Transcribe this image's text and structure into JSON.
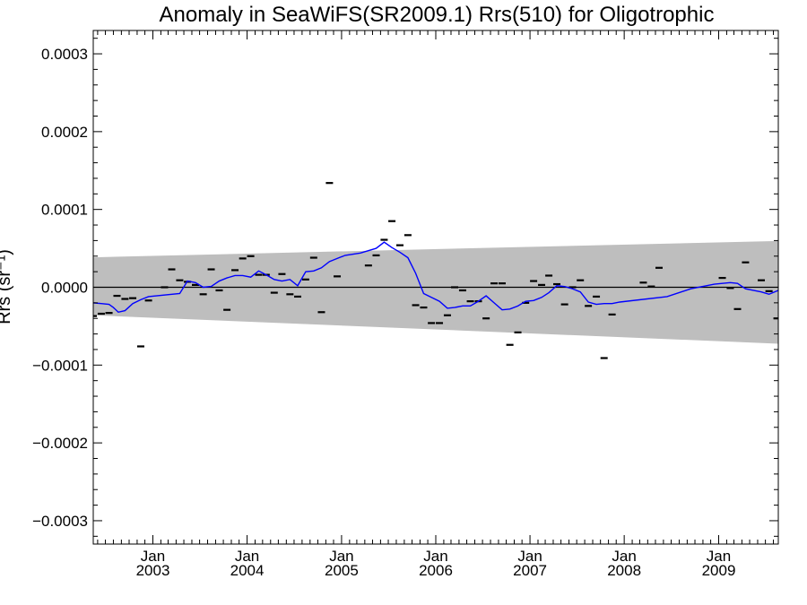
{
  "chart_data": {
    "type": "scatter",
    "title": "Anomaly in SeaWiFS(SR2009.1) Rrs(510) for Oligotrophic",
    "ylabel": "Rrs (sr⁻¹)",
    "xlabel": "",
    "xlim": [
      "2002-05-15",
      "2009-08-20"
    ],
    "ylim": [
      -0.00033,
      0.00033
    ],
    "x_ticks": [
      {
        "date": "2003-01-01",
        "month": "Jan",
        "year": "2003"
      },
      {
        "date": "2004-01-01",
        "month": "Jan",
        "year": "2004"
      },
      {
        "date": "2005-01-01",
        "month": "Jan",
        "year": "2005"
      },
      {
        "date": "2006-01-01",
        "month": "Jan",
        "year": "2006"
      },
      {
        "date": "2007-01-01",
        "month": "Jan",
        "year": "2007"
      },
      {
        "date": "2008-01-01",
        "month": "Jan",
        "year": "2008"
      },
      {
        "date": "2009-01-01",
        "month": "Jan",
        "year": "2009"
      }
    ],
    "y_ticks": [
      {
        "value": 0.0003,
        "label": "0.0003"
      },
      {
        "value": 0.0002,
        "label": "0.0002"
      },
      {
        "value": 0.0001,
        "label": "0.0001"
      },
      {
        "value": 0.0,
        "label": "0.0000"
      },
      {
        "value": -0.0001,
        "label": "−0.0001"
      },
      {
        "value": -0.0002,
        "label": "−0.0002"
      },
      {
        "value": -0.0003,
        "label": "−0.0003"
      }
    ],
    "zero_line": true,
    "band": {
      "color": "#bebebe",
      "upper": [
        [
          "2002-05-15",
          3.85e-05
        ],
        [
          "2009-08-20",
          5.95e-05
        ]
      ],
      "lower": [
        [
          "2002-05-15",
          -3.6e-05
        ],
        [
          "2009-08-20",
          -7.25e-05
        ]
      ]
    },
    "series": [
      {
        "marker": "dash",
        "color": "#000000",
        "points": [
          [
            "2002-05-15",
            -3.7e-05
          ],
          [
            "2002-06-15",
            -3.4e-05
          ],
          [
            "2002-07-15",
            -3.3e-05
          ],
          [
            "2002-08-15",
            -1.1e-05
          ],
          [
            "2002-09-15",
            -1.5e-05
          ],
          [
            "2002-10-15",
            -1.4e-05
          ],
          [
            "2002-11-15",
            -7.6e-05
          ],
          [
            "2002-12-15",
            -1.7e-05
          ],
          [
            "2003-02-15",
            0.0
          ],
          [
            "2003-03-15",
            2.3e-05
          ],
          [
            "2003-04-15",
            9e-06
          ],
          [
            "2003-05-15",
            7e-06
          ],
          [
            "2003-06-15",
            3e-06
          ],
          [
            "2003-07-15",
            -9e-06
          ],
          [
            "2003-08-15",
            2.3e-05
          ],
          [
            "2003-09-15",
            -4e-06
          ],
          [
            "2003-10-15",
            -2.9e-05
          ],
          [
            "2003-11-15",
            2.2e-05
          ],
          [
            "2003-12-15",
            3.7e-05
          ],
          [
            "2004-01-15",
            4e-05
          ],
          [
            "2004-02-15",
            1.6e-05
          ],
          [
            "2004-03-15",
            1.6e-05
          ],
          [
            "2004-04-15",
            -7e-06
          ],
          [
            "2004-05-15",
            1.7e-05
          ],
          [
            "2004-06-15",
            -9e-06
          ],
          [
            "2004-07-15",
            -1.2e-05
          ],
          [
            "2004-08-15",
            1e-05
          ],
          [
            "2004-09-15",
            3.8e-05
          ],
          [
            "2004-10-15",
            -3.2e-05
          ],
          [
            "2004-11-15",
            0.000134
          ],
          [
            "2004-12-15",
            1.4e-05
          ],
          [
            "2005-04-15",
            2.8e-05
          ],
          [
            "2005-05-15",
            4.1e-05
          ],
          [
            "2005-06-15",
            6.1e-05
          ],
          [
            "2005-07-15",
            8.5e-05
          ],
          [
            "2005-08-15",
            5.4e-05
          ],
          [
            "2005-09-15",
            6.7e-05
          ],
          [
            "2005-10-15",
            -2.3e-05
          ],
          [
            "2005-11-15",
            -2.6e-05
          ],
          [
            "2005-12-15",
            -4.6e-05
          ],
          [
            "2006-01-15",
            -4.6e-05
          ],
          [
            "2006-02-15",
            -3.6e-05
          ],
          [
            "2006-03-15",
            0.0
          ],
          [
            "2006-04-15",
            -4e-06
          ],
          [
            "2006-05-15",
            -1.8e-05
          ],
          [
            "2006-06-15",
            -1.8e-05
          ],
          [
            "2006-07-15",
            -4e-05
          ],
          [
            "2006-08-15",
            5e-06
          ],
          [
            "2006-09-15",
            5e-06
          ],
          [
            "2006-10-15",
            -7.4e-05
          ],
          [
            "2006-11-15",
            -5.8e-05
          ],
          [
            "2006-12-15",
            -2e-05
          ],
          [
            "2007-01-15",
            8e-06
          ],
          [
            "2007-02-15",
            3e-06
          ],
          [
            "2007-03-15",
            1.5e-05
          ],
          [
            "2007-04-15",
            4e-06
          ],
          [
            "2007-05-15",
            -2.2e-05
          ],
          [
            "2007-06-15",
            0.0
          ],
          [
            "2007-07-15",
            9e-06
          ],
          [
            "2007-08-15",
            -2.4e-05
          ],
          [
            "2007-09-15",
            -1.2e-05
          ],
          [
            "2007-10-15",
            -9.1e-05
          ],
          [
            "2007-11-15",
            -3.5e-05
          ],
          [
            "2008-03-15",
            6e-06
          ],
          [
            "2008-04-15",
            1e-06
          ],
          [
            "2008-05-15",
            2.5e-05
          ],
          [
            "2009-01-15",
            1.2e-05
          ],
          [
            "2009-02-15",
            -1e-06
          ],
          [
            "2009-03-15",
            -2.8e-05
          ],
          [
            "2009-04-15",
            3.2e-05
          ],
          [
            "2009-06-15",
            9e-06
          ],
          [
            "2009-07-15",
            -5e-06
          ],
          [
            "2009-08-15",
            -4e-05
          ]
        ]
      },
      {
        "marker": "line",
        "color": "#0000ff",
        "points": [
          [
            "2002-05-15",
            -2e-05
          ],
          [
            "2002-06-15",
            -2.1e-05
          ],
          [
            "2002-07-15",
            -2.2e-05
          ],
          [
            "2002-08-01",
            -2.6e-05
          ],
          [
            "2002-08-20",
            -3.2e-05
          ],
          [
            "2002-09-15",
            -3e-05
          ],
          [
            "2002-10-15",
            -2.1e-05
          ],
          [
            "2002-11-15",
            -1.6e-05
          ],
          [
            "2002-12-15",
            -1.2e-05
          ],
          [
            "2003-04-15",
            -8e-06
          ],
          [
            "2003-05-15",
            8e-06
          ],
          [
            "2003-06-15",
            6e-06
          ],
          [
            "2003-07-15",
            0.0
          ],
          [
            "2003-08-15",
            1e-06
          ],
          [
            "2003-09-15",
            8e-06
          ],
          [
            "2003-10-15",
            1.2e-05
          ],
          [
            "2003-11-15",
            1.5e-05
          ],
          [
            "2003-12-15",
            1.5e-05
          ],
          [
            "2004-01-15",
            1.3e-05
          ],
          [
            "2004-02-15",
            2.1e-05
          ],
          [
            "2004-03-15",
            1.6e-05
          ],
          [
            "2004-04-15",
            1e-05
          ],
          [
            "2004-05-15",
            8e-06
          ],
          [
            "2004-06-15",
            1e-05
          ],
          [
            "2004-07-15",
            2e-06
          ],
          [
            "2004-08-15",
            2e-05
          ],
          [
            "2004-09-15",
            2.1e-05
          ],
          [
            "2004-10-15",
            2.5e-05
          ],
          [
            "2004-11-15",
            3.3e-05
          ],
          [
            "2004-12-15",
            3.7e-05
          ],
          [
            "2005-01-15",
            4.1e-05
          ],
          [
            "2005-03-15",
            4.4e-05
          ],
          [
            "2005-05-15",
            5e-05
          ],
          [
            "2005-06-15",
            5.8e-05
          ],
          [
            "2005-07-15",
            5.1e-05
          ],
          [
            "2005-08-15",
            4.5e-05
          ],
          [
            "2005-09-15",
            3.8e-05
          ],
          [
            "2005-10-15",
            1.8e-05
          ],
          [
            "2005-11-15",
            -8e-06
          ],
          [
            "2005-12-15",
            -1.3e-05
          ],
          [
            "2006-01-15",
            -1.8e-05
          ],
          [
            "2006-02-15",
            -2.7e-05
          ],
          [
            "2006-03-15",
            -2.6e-05
          ],
          [
            "2006-04-15",
            -2.4e-05
          ],
          [
            "2006-05-15",
            -2.4e-05
          ],
          [
            "2006-06-15",
            -1.8e-05
          ],
          [
            "2006-07-15",
            -1.1e-05
          ],
          [
            "2006-08-15",
            -2e-05
          ],
          [
            "2006-09-15",
            -2.9e-05
          ],
          [
            "2006-10-15",
            -2.8e-05
          ],
          [
            "2006-11-15",
            -2.4e-05
          ],
          [
            "2006-12-15",
            -1.8e-05
          ],
          [
            "2007-01-15",
            -1.7e-05
          ],
          [
            "2007-02-15",
            -1.3e-05
          ],
          [
            "2007-03-15",
            -7e-06
          ],
          [
            "2007-04-15",
            2e-06
          ],
          [
            "2007-05-15",
            1e-06
          ],
          [
            "2007-06-15",
            -2e-06
          ],
          [
            "2007-07-15",
            -6e-06
          ],
          [
            "2007-08-15",
            -1.9e-05
          ],
          [
            "2007-09-15",
            -2.2e-05
          ],
          [
            "2007-10-15",
            -2.1e-05
          ],
          [
            "2007-11-15",
            -2.1e-05
          ],
          [
            "2007-12-15",
            -1.9e-05
          ],
          [
            "2008-06-15",
            -1.2e-05
          ],
          [
            "2008-09-15",
            -2e-06
          ],
          [
            "2008-12-15",
            4e-06
          ],
          [
            "2009-02-15",
            6e-06
          ],
          [
            "2009-03-15",
            5e-06
          ],
          [
            "2009-04-15",
            -2e-06
          ],
          [
            "2009-06-15",
            -6e-06
          ],
          [
            "2009-07-15",
            -9e-06
          ],
          [
            "2009-08-20",
            -4e-06
          ]
        ]
      }
    ],
    "grid": false
  }
}
